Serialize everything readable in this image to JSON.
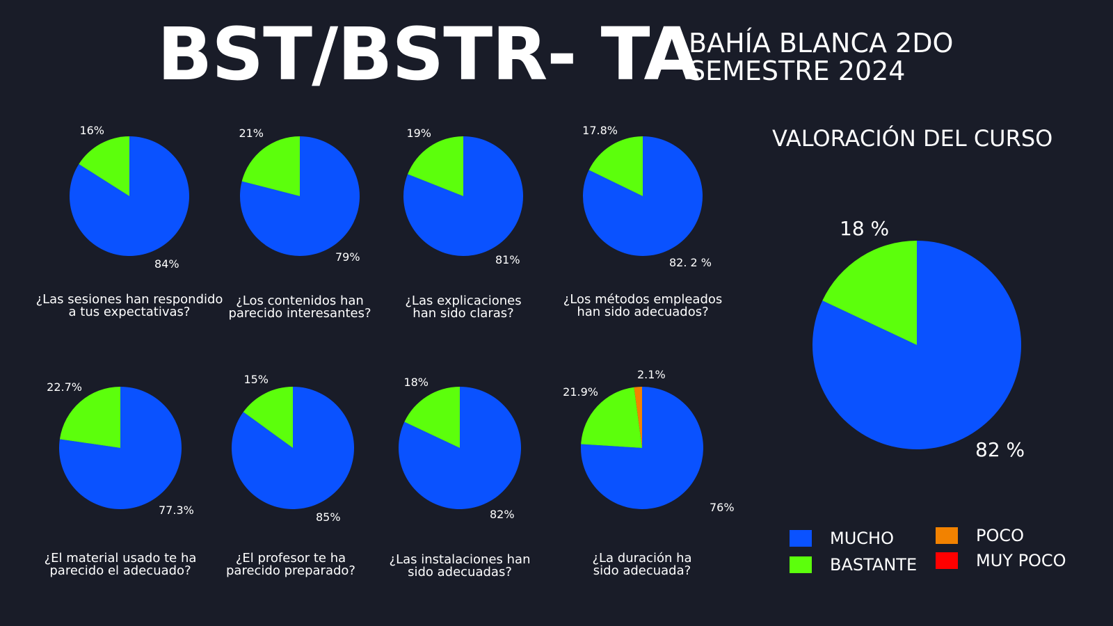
{
  "header": {
    "title": "BST/BSTR- TA",
    "subtitle_line1": "BAHÍA BLANCA 2DO",
    "subtitle_line2": "SEMESTRE 2024"
  },
  "summary_title": "VALORACIÓN DEL CURSO",
  "colors": {
    "mucho": "#0a52ff",
    "bastante": "#5cff0c",
    "poco": "#f28200",
    "muy_poco": "#ff0000"
  },
  "legend": [
    {
      "label": "MUCHO",
      "color": "#0a52ff"
    },
    {
      "label": "BASTANTE",
      "color": "#5cff0c"
    },
    {
      "label": "POCO",
      "color": "#f28200"
    },
    {
      "label": "MUY POCO",
      "color": "#ff0000"
    }
  ],
  "chart_data": [
    {
      "type": "pie",
      "question_line1": "¿Las sesiones han respondido",
      "question_line2": "a tus expectativas?",
      "slices": [
        {
          "category": "MUCHO",
          "value": 84,
          "label": "84%"
        },
        {
          "category": "BASTANTE",
          "value": 16,
          "label": "16%"
        }
      ]
    },
    {
      "type": "pie",
      "question_line1": "¿Los contenidos han",
      "question_line2": "parecido interesantes?",
      "slices": [
        {
          "category": "MUCHO",
          "value": 79,
          "label": "79%"
        },
        {
          "category": "BASTANTE",
          "value": 21,
          "label": "21%"
        }
      ]
    },
    {
      "type": "pie",
      "question_line1": "¿Las explicaciones",
      "question_line2": "han sido claras?",
      "slices": [
        {
          "category": "MUCHO",
          "value": 81,
          "label": "81%"
        },
        {
          "category": "BASTANTE",
          "value": 19,
          "label": "19%"
        }
      ]
    },
    {
      "type": "pie",
      "question_line1": "¿Los métodos empleados",
      "question_line2": "han sido adecuados?",
      "slices": [
        {
          "category": "MUCHO",
          "value": 82.2,
          "label": "82. 2 %"
        },
        {
          "category": "BASTANTE",
          "value": 17.8,
          "label": "17.8%"
        }
      ]
    },
    {
      "type": "pie",
      "question_line1": "¿El material usado te ha",
      "question_line2": "parecido el adecuado?",
      "slices": [
        {
          "category": "MUCHO",
          "value": 77.3,
          "label": "77.3%"
        },
        {
          "category": "BASTANTE",
          "value": 22.7,
          "label": "22.7%"
        }
      ]
    },
    {
      "type": "pie",
      "question_line1": "¿El profesor te ha",
      "question_line2": "parecido preparado?",
      "slices": [
        {
          "category": "MUCHO",
          "value": 85,
          "label": "85%"
        },
        {
          "category": "BASTANTE",
          "value": 15,
          "label": "15%"
        }
      ]
    },
    {
      "type": "pie",
      "question_line1": "¿Las instalaciones han",
      "question_line2": "sido adecuadas?",
      "slices": [
        {
          "category": "MUCHO",
          "value": 82,
          "label": "82%"
        },
        {
          "category": "BASTANTE",
          "value": 18,
          "label": "18%"
        }
      ]
    },
    {
      "type": "pie",
      "question_line1": "¿La duración ha",
      "question_line2": "sido adecuada?",
      "slices": [
        {
          "category": "MUCHO",
          "value": 76,
          "label": "76%"
        },
        {
          "category": "BASTANTE",
          "value": 21.9,
          "label": "21.9%"
        },
        {
          "category": "POCO",
          "value": 2.1,
          "label": "2.1%"
        }
      ]
    },
    {
      "type": "pie",
      "title": "VALORACIÓN DEL CURSO",
      "slices": [
        {
          "category": "MUCHO",
          "value": 82,
          "label": "82 %"
        },
        {
          "category": "BASTANTE",
          "value": 18,
          "label": "18 %"
        }
      ]
    }
  ]
}
